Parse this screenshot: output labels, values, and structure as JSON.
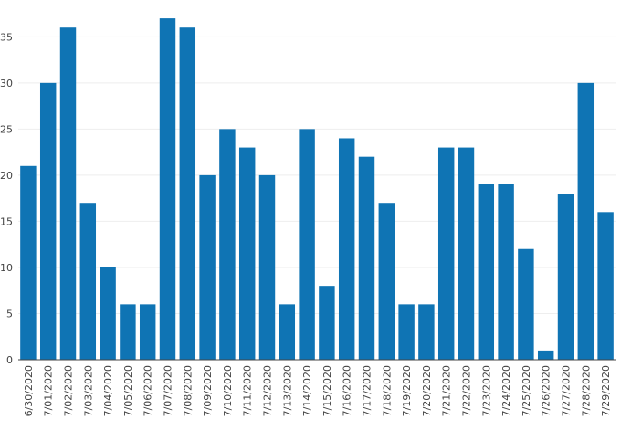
{
  "chart_data": {
    "type": "bar",
    "title": "",
    "xlabel": "",
    "ylabel": "",
    "ylim": [
      0,
      38
    ],
    "yticks": [
      0,
      5,
      10,
      15,
      20,
      25,
      30,
      35
    ],
    "grid": true,
    "bar_color": "#0f74b4",
    "categories": [
      "6/30/2020",
      "7/01/2020",
      "7/02/2020",
      "7/03/2020",
      "7/04/2020",
      "7/05/2020",
      "7/06/2020",
      "7/07/2020",
      "7/08/2020",
      "7/09/2020",
      "7/10/2020",
      "7/11/2020",
      "7/12/2020",
      "7/13/2020",
      "7/14/2020",
      "7/15/2020",
      "7/16/2020",
      "7/17/2020",
      "7/18/2020",
      "7/19/2020",
      "7/20/2020",
      "7/21/2020",
      "7/22/2020",
      "7/23/2020",
      "7/24/2020",
      "7/25/2020",
      "7/26/2020",
      "7/27/2020",
      "7/28/2020",
      "7/29/2020"
    ],
    "values": [
      21,
      30,
      36,
      17,
      10,
      6,
      6,
      37,
      36,
      20,
      25,
      23,
      20,
      6,
      25,
      8,
      24,
      22,
      17,
      6,
      6,
      23,
      23,
      19,
      19,
      12,
      1,
      18,
      30,
      16
    ]
  }
}
